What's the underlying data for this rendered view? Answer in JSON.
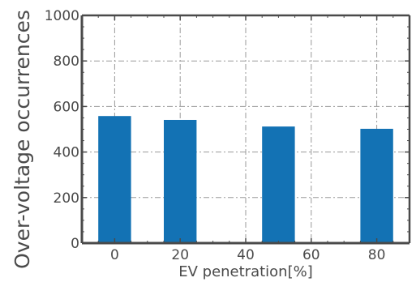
{
  "chart_data": {
    "type": "bar",
    "title": "",
    "xlabel": "EV penetration[%]",
    "ylabel": "Over-voltage occurrences",
    "x": [
      0,
      20,
      50,
      80
    ],
    "values": [
      558,
      541,
      512,
      502
    ],
    "xlim": [
      -10,
      90
    ],
    "ylim": [
      0,
      1000
    ],
    "xticks": [
      0,
      20,
      40,
      60,
      80
    ],
    "yticks": [
      0,
      200,
      400,
      600,
      800,
      1000
    ],
    "bar_color": "#1372b4",
    "grid": true,
    "legend": "none"
  }
}
